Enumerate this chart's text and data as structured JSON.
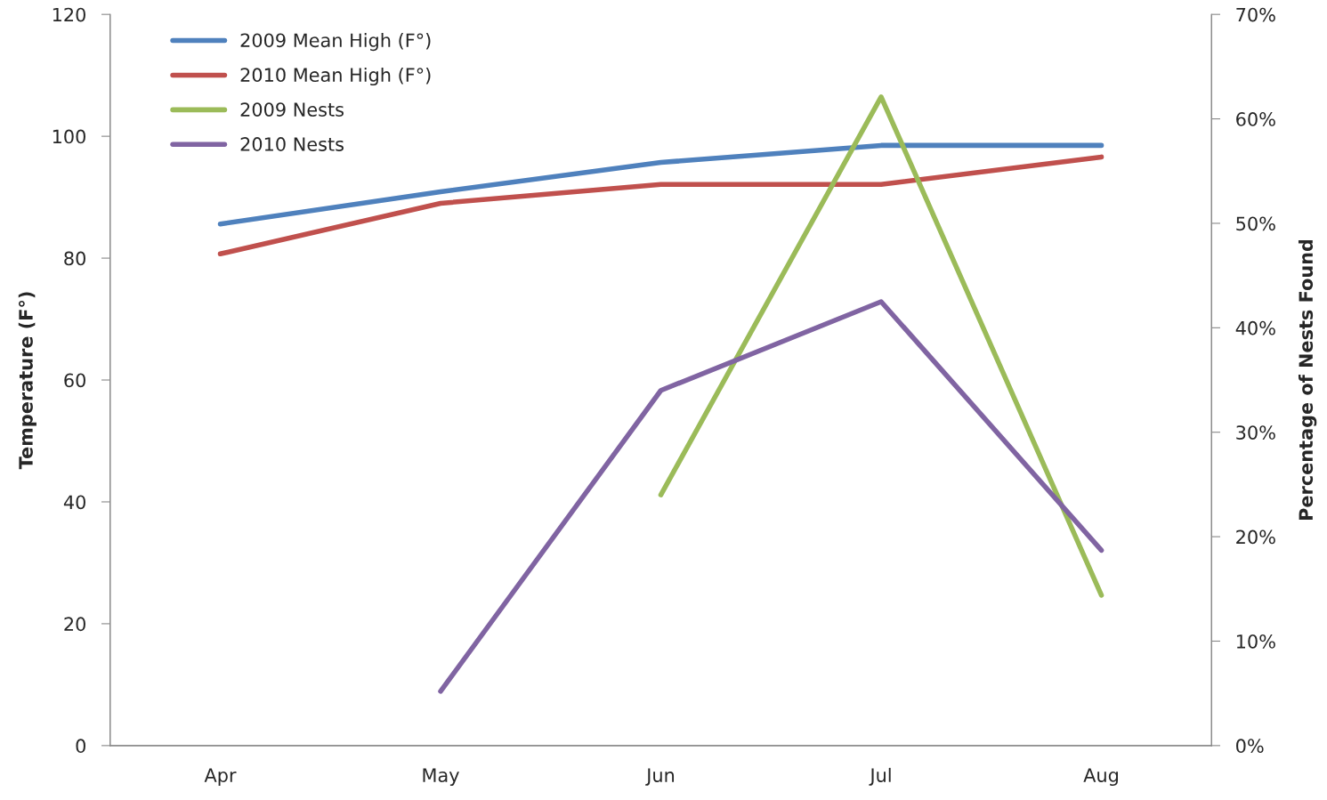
{
  "chart_data": {
    "type": "line",
    "categories": [
      "Apr",
      "May",
      "Jun",
      "Jul",
      "Aug"
    ],
    "ylabel": "Temperature (F°)",
    "y2label": "Percentage of Nests Found",
    "ylim": [
      0,
      120
    ],
    "yticks": [
      0,
      20,
      40,
      60,
      80,
      100,
      120
    ],
    "y2lim": [
      0,
      70
    ],
    "y2ticks": [
      {
        "value": 0,
        "label": "0%"
      },
      {
        "value": 10,
        "label": "10%"
      },
      {
        "value": 20,
        "label": "20%"
      },
      {
        "value": 30,
        "label": "30%"
      },
      {
        "value": 40,
        "label": "40%"
      },
      {
        "value": 50,
        "label": "50%"
      },
      {
        "value": 60,
        "label": "60%"
      },
      {
        "value": 70,
        "label": "70%"
      }
    ],
    "series": [
      {
        "name": "2009 Mean High (F°)",
        "color": "#4f81bd",
        "values": [
          85.6,
          90.9,
          95.7,
          98.5,
          98.5
        ]
      },
      {
        "name": "2010 Mean High (F°)",
        "color": "#c0504d",
        "values": [
          80.7,
          89.0,
          92.1,
          92.1,
          96.6
        ]
      },
      {
        "name": "2009 Nests",
        "color": "#9bbb59",
        "axis": "y2",
        "values": [
          null,
          null,
          24.0,
          62.1,
          14.4
        ]
      },
      {
        "name": "2010 Nests",
        "color": "#8064a2",
        "axis": "y2",
        "values": [
          null,
          5.2,
          34.0,
          42.5,
          18.7
        ]
      }
    ],
    "legend": "top left",
    "grid": false,
    "marker": "none",
    "line_style": "solid"
  }
}
